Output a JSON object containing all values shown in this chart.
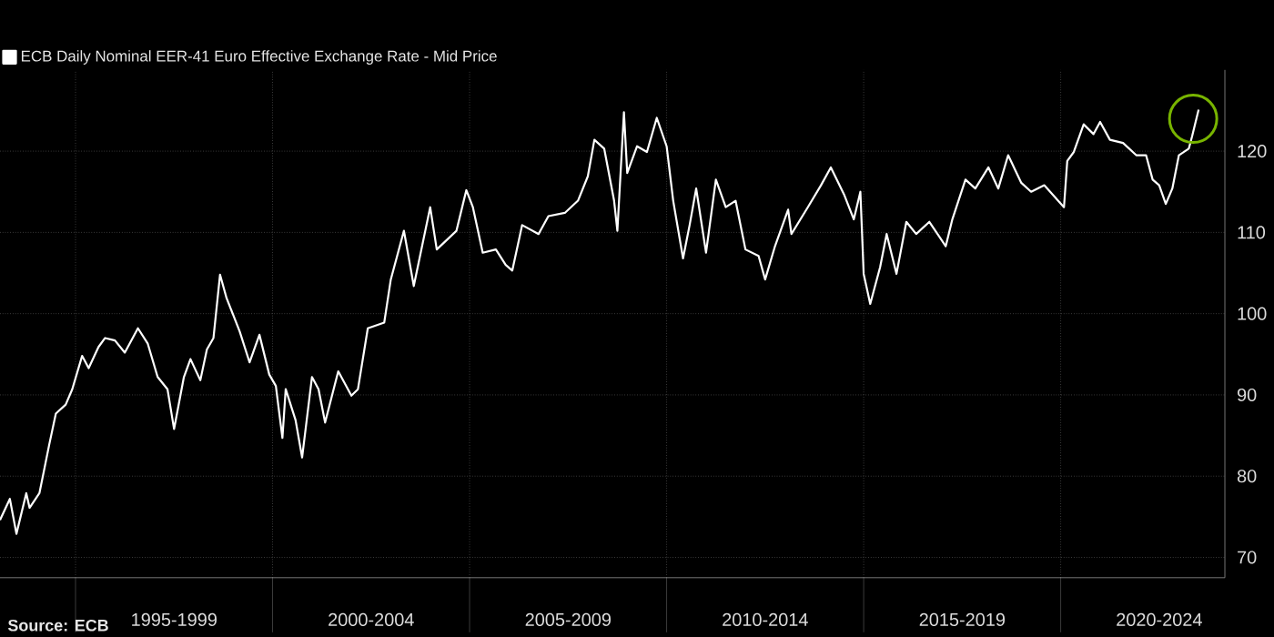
{
  "chart_data": {
    "type": "line",
    "series": [
      {
        "name": "ECB Daily Nominal EER-41 Euro Effective Exchange Rate - Mid Price",
        "color": "#ffffff",
        "x": [
          "1993-02",
          "1993-05",
          "1993-07",
          "1993-10",
          "1993-11",
          "1994-02",
          "1994-05",
          "1994-07",
          "1994-10",
          "1994-12",
          "1995-03",
          "1995-05",
          "1995-08",
          "1995-10",
          "1996-01",
          "1996-04",
          "1996-08",
          "1996-11",
          "1997-02",
          "1997-05",
          "1997-07",
          "1997-10",
          "1997-12",
          "1998-03",
          "1998-05",
          "1998-07",
          "1998-09",
          "1998-11",
          "1999-03",
          "1999-06",
          "1999-09",
          "1999-12",
          "2000-02",
          "2000-04",
          "2000-05",
          "2000-08",
          "2000-10",
          "2001-01",
          "2001-03",
          "2001-05",
          "2001-09",
          "2002-01",
          "2002-03",
          "2002-06",
          "2002-11",
          "2003-01",
          "2003-05",
          "2003-08",
          "2004-01",
          "2004-03",
          "2004-09",
          "2004-12",
          "2005-02",
          "2005-05",
          "2005-09",
          "2005-12",
          "2006-02",
          "2006-05",
          "2006-10",
          "2007-01",
          "2007-06",
          "2007-10",
          "2008-01",
          "2008-03",
          "2008-06",
          "2008-09",
          "2008-10",
          "2008-12",
          "2009-01",
          "2009-04",
          "2009-07",
          "2009-10",
          "2010-01",
          "2010-03",
          "2010-06",
          "2010-08",
          "2010-10",
          "2011-01",
          "2011-04",
          "2011-07",
          "2011-10",
          "2012-01",
          "2012-05",
          "2012-07",
          "2012-10",
          "2013-02",
          "2013-03",
          "2013-08",
          "2013-12",
          "2014-03",
          "2014-07",
          "2014-10",
          "2014-12",
          "2015-01",
          "2015-03",
          "2015-06",
          "2015-08",
          "2015-11",
          "2016-02",
          "2016-05",
          "2016-09",
          "2017-02",
          "2017-04",
          "2017-08",
          "2017-11",
          "2018-03",
          "2018-06",
          "2018-09",
          "2019-01",
          "2019-04",
          "2019-08",
          "2020-02",
          "2020-03",
          "2020-05",
          "2020-08",
          "2020-11",
          "2021-01",
          "2021-04",
          "2021-08",
          "2021-12",
          "2022-03",
          "2022-05",
          "2022-07",
          "2022-09",
          "2022-11",
          "2023-01",
          "2023-04",
          "2023-05",
          "2023-07"
        ],
        "values": [
          74.6,
          77.2,
          72.9,
          77.9,
          76.1,
          77.9,
          83.9,
          87.7,
          88.8,
          90.7,
          94.8,
          93.3,
          95.9,
          97.0,
          96.7,
          95.2,
          98.2,
          96.3,
          92.2,
          90.7,
          85.8,
          92.2,
          94.4,
          91.8,
          95.6,
          97.0,
          104.8,
          101.9,
          97.8,
          94.0,
          97.4,
          92.5,
          91.1,
          84.7,
          90.7,
          86.9,
          82.3,
          92.2,
          90.7,
          86.6,
          92.9,
          89.9,
          90.7,
          98.2,
          98.9,
          104.2,
          110.2,
          103.4,
          113.1,
          107.9,
          110.2,
          115.2,
          113.1,
          107.5,
          107.9,
          106.0,
          105.3,
          110.9,
          109.8,
          112.0,
          112.4,
          113.9,
          116.9,
          121.4,
          120.3,
          113.9,
          110.2,
          124.8,
          117.3,
          120.6,
          119.9,
          124.1,
          120.6,
          113.9,
          106.8,
          110.9,
          115.4,
          107.5,
          116.5,
          113.1,
          113.9,
          107.9,
          107.1,
          104.2,
          108.3,
          112.8,
          109.8,
          113.1,
          115.8,
          118.0,
          114.7,
          111.6,
          115.0,
          104.9,
          101.2,
          105.7,
          109.8,
          104.9,
          111.3,
          109.8,
          111.3,
          108.3,
          111.6,
          116.5,
          115.4,
          118.0,
          115.4,
          119.5,
          116.1,
          115.0,
          115.8,
          113.1,
          118.8,
          119.9,
          123.3,
          122.1,
          123.6,
          121.4,
          121.0,
          119.5,
          119.5,
          116.5,
          115.8,
          113.5,
          115.4,
          119.5,
          120.3,
          121.8,
          125.1
        ]
      }
    ],
    "xlim": [
      "1993-02",
      "2024-03"
    ],
    "xticks": [
      {
        "value": "1995-01",
        "label": null
      },
      {
        "value": "1997-07",
        "label": "1995-1999"
      },
      {
        "value": "2000-01",
        "label": null
      },
      {
        "value": "2002-07",
        "label": "2000-2004"
      },
      {
        "value": "2005-01",
        "label": null
      },
      {
        "value": "2007-07",
        "label": "2005-2009"
      },
      {
        "value": "2010-01",
        "label": null
      },
      {
        "value": "2012-07",
        "label": "2010-2014"
      },
      {
        "value": "2015-01",
        "label": null
      },
      {
        "value": "2017-07",
        "label": "2015-2019"
      },
      {
        "value": "2020-01",
        "label": null
      },
      {
        "value": "2022-07",
        "label": "2020-2024"
      }
    ],
    "ylim": [
      67.5,
      130
    ],
    "yticks": [
      70,
      80,
      90,
      100,
      110,
      120
    ],
    "grid": true,
    "legend": "top left",
    "marker": "none",
    "line_style": "solid",
    "annotations": [
      "Source: ECB"
    ]
  }
}
